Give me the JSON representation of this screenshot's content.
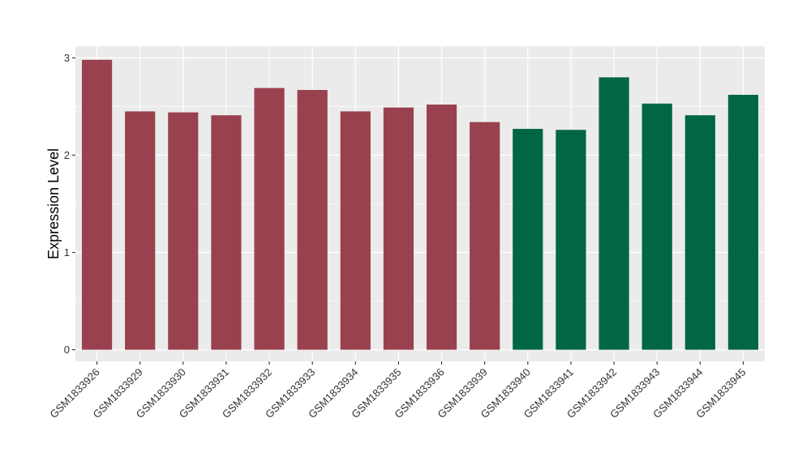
{
  "chart_data": {
    "type": "bar",
    "title": "",
    "xlabel": "",
    "ylabel": "Expression Level",
    "ylim": [
      -0.12,
      3.12
    ],
    "yticks": [
      0,
      1,
      2,
      3
    ],
    "ytick_labels": [
      "0",
      "1",
      "2",
      "3"
    ],
    "grid": true,
    "legend": "none",
    "categories": [
      "GSM1833926",
      "GSM1833929",
      "GSM1833930",
      "GSM1833931",
      "GSM1833932",
      "GSM1833933",
      "GSM1833934",
      "GSM1833935",
      "GSM1833936",
      "GSM1833939",
      "GSM1833940",
      "GSM1833941",
      "GSM1833942",
      "GSM1833943",
      "GSM1833944",
      "GSM1833945"
    ],
    "values": [
      2.98,
      2.45,
      2.44,
      2.41,
      2.69,
      2.67,
      2.45,
      2.49,
      2.52,
      2.34,
      2.27,
      2.26,
      2.8,
      2.53,
      2.41,
      2.62
    ],
    "bar_colors": [
      "#99414f",
      "#99414f",
      "#99414f",
      "#99414f",
      "#99414f",
      "#99414f",
      "#99414f",
      "#99414f",
      "#99414f",
      "#99414f",
      "#006644",
      "#006644",
      "#006644",
      "#006644",
      "#006644",
      "#006644"
    ],
    "panel_background": "#ebebeb",
    "grid_color": "#ffffff"
  }
}
